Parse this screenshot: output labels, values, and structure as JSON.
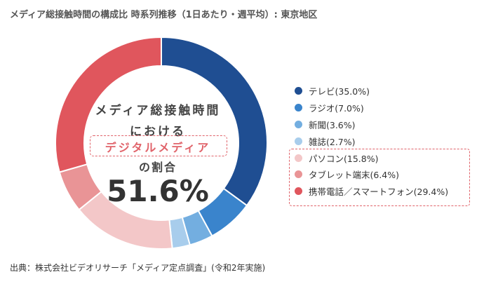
{
  "title": "メディア総接触時間の構成比 時系列推移（1日あたり・週平均）: 東京地区",
  "center": {
    "line1": "メディア総接触時間",
    "line2": "における",
    "line3": "デジタルメディア",
    "line4": "の割合",
    "value": "51.6%"
  },
  "source": "出典：株式会社ビデオリサーチ「メディア定点調査」(令和2年実施)",
  "chart_data": {
    "type": "donut",
    "unit": "%",
    "categories": [
      "テレビ",
      "ラジオ",
      "新聞",
      "雑誌",
      "パソコン",
      "タブレット端末",
      "携帯電話／スマートフォン"
    ],
    "values": [
      35.0,
      7.0,
      3.6,
      2.7,
      15.8,
      6.4,
      29.4
    ],
    "labels": [
      "テレビ(35.0%)",
      "ラジオ(7.0%)",
      "新聞(3.6%)",
      "雑誌(2.7%)",
      "パソコン(15.8%)",
      "タブレット端末(6.4%)",
      "携帯電話／スマートフォン(29.4%)"
    ],
    "colors": [
      "#1f4e92",
      "#3a84cc",
      "#73aee0",
      "#a8cdec",
      "#f3c7c8",
      "#e99496",
      "#e0565d"
    ],
    "legend_position": "right"
  }
}
